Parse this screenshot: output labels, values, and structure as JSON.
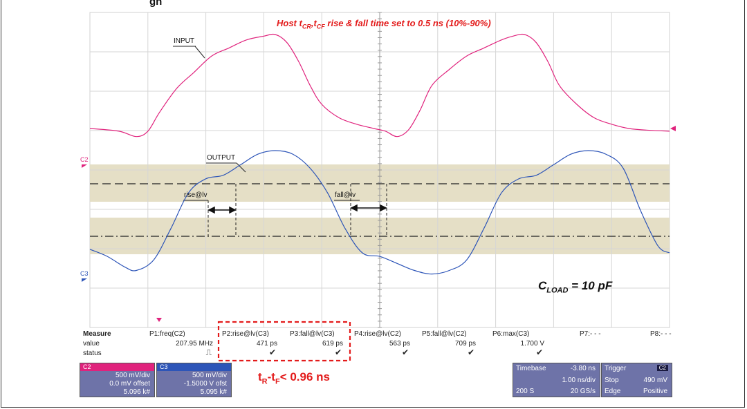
{
  "title_partial": "gn",
  "annotation_host": "Host t",
  "annotation_host_sub1": "CR",
  "annotation_mid": ",t",
  "annotation_host_sub2": "CF",
  "annotation_tail": " rise & fall time set to 0.5 ns (10%-90%)",
  "trace_labels": {
    "input": "INPUT",
    "output": "OUTPUT",
    "rise": "rise@lv",
    "fall": "fall@lv",
    "c2": "C2",
    "c3": "C3"
  },
  "cload_prefix": "C",
  "cload_sub": "LOAD",
  "cload_suffix": " = 10 pF",
  "trtf_prefix": "t",
  "trtf_sub1": "R",
  "trtf_mid": "-t",
  "trtf_sub2": "F",
  "trtf_suffix": "< 0.96 ns",
  "measure": {
    "row_labels": [
      "Measure",
      "value",
      "status"
    ],
    "params": [
      {
        "name": "P1:freq(C2)",
        "value": "207.95 MHz",
        "status": "⎍"
      },
      {
        "name": "P2:rise@lv(C3)",
        "value": "471 ps",
        "status": "✔"
      },
      {
        "name": "P3:fall@lv(C3)",
        "value": "619 ps",
        "status": "✔"
      },
      {
        "name": "P4:rise@lv(C2)",
        "value": "563 ps",
        "status": "✔"
      },
      {
        "name": "P5:fall@lv(C2)",
        "value": "709 ps",
        "status": "✔"
      },
      {
        "name": "P6:max(C3)",
        "value": "1.700 V",
        "status": "✔"
      },
      {
        "name": "P7:- - -",
        "value": "",
        "status": ""
      },
      {
        "name": "P8:- - -",
        "value": "",
        "status": ""
      }
    ]
  },
  "channels": [
    {
      "name": "C2",
      "color": "#e0237d",
      "vdiv": "500 mV/div",
      "offset": "0.0 mV offset",
      "points": "5.096 k#"
    },
    {
      "name": "C3",
      "color": "#2d55b8",
      "vdiv": "500 mV/div",
      "offset": "-1.5000 V ofst",
      "points": "5.095 k#"
    }
  ],
  "timebase": {
    "label": "Timebase",
    "delay": "-3.80 ns",
    "div": "1.00 ns/div",
    "samples": "200 S",
    "rate": "20 GS/s"
  },
  "trigger": {
    "label": "Trigger",
    "channel": "C2",
    "mode": "Stop",
    "level": "490 mV",
    "type": "Edge",
    "slope": "Positive"
  },
  "colors": {
    "input": "#e0237d",
    "output": "#2d55b8",
    "highlight": "#e31b1b",
    "band": "#e2dcc0",
    "panel": "#6e73a8"
  },
  "chart_data": {
    "type": "line",
    "title": "Host tCR,tCF rise & fall time set to 0.5 ns (10%-90%)",
    "x_unit": "ns",
    "x_range": [
      -8.8,
      1.2
    ],
    "grid": "on, 10 x 8 divisions",
    "series": [
      {
        "name": "INPUT",
        "channel": "C2",
        "x": [
          -8.8,
          -8.3,
          -8.0,
          -7.8,
          -7.6,
          -7.3,
          -7.0,
          -6.7,
          -6.4,
          -6.1,
          -5.8,
          -5.6,
          -5.4,
          -5.2,
          -5.0,
          -4.8,
          -4.5,
          -4.2,
          -3.9,
          -3.7,
          -3.5,
          -3.3,
          -3.1,
          -2.9,
          -2.6,
          -2.3,
          -2.0,
          -1.7,
          -1.5,
          -1.3,
          -1.1,
          -0.9,
          -0.7,
          -0.4,
          -0.1,
          0.2,
          0.5,
          0.8,
          1.2
        ],
        "y": [
          0.0,
          -0.05,
          -0.15,
          -0.05,
          0.3,
          0.75,
          1.05,
          1.35,
          1.5,
          1.65,
          1.72,
          1.75,
          1.6,
          1.25,
          0.8,
          0.45,
          0.2,
          0.08,
          0.0,
          -0.05,
          -0.15,
          -0.02,
          0.35,
          0.8,
          1.1,
          1.35,
          1.5,
          1.65,
          1.72,
          1.75,
          1.6,
          1.25,
          0.8,
          0.45,
          0.2,
          0.08,
          0.0,
          -0.03,
          -0.05
        ]
      },
      {
        "name": "OUTPUT",
        "channel": "C3",
        "x": [
          -8.8,
          -8.5,
          -8.2,
          -8.0,
          -7.7,
          -7.4,
          -7.1,
          -6.8,
          -6.5,
          -6.2,
          -5.9,
          -5.6,
          -5.3,
          -5.0,
          -4.7,
          -4.4,
          -4.1,
          -3.8,
          -3.5,
          -3.2,
          -2.9,
          -2.6,
          -2.3,
          -2.0,
          -1.7,
          -1.4,
          -1.1,
          -0.8,
          -0.5,
          -0.2,
          0.1,
          0.4,
          0.7,
          1.0,
          1.2
        ],
        "y": [
          0.05,
          -0.05,
          -0.2,
          -0.25,
          -0.1,
          0.35,
          0.85,
          1.05,
          1.1,
          1.25,
          1.4,
          1.45,
          1.4,
          1.2,
          0.85,
          0.35,
          0.0,
          -0.05,
          -0.15,
          -0.25,
          -0.3,
          -0.25,
          -0.1,
          0.35,
          0.85,
          1.05,
          1.1,
          1.25,
          1.4,
          1.45,
          1.4,
          1.2,
          0.6,
          0.1,
          0.0
        ]
      }
    ],
    "measurements": [
      {
        "param": "P1:freq(C2)",
        "value": "207.95 MHz"
      },
      {
        "param": "P2:rise@lv(C3)",
        "value": "471 ps"
      },
      {
        "param": "P3:fall@lv(C3)",
        "value": "619 ps"
      },
      {
        "param": "P4:rise@lv(C2)",
        "value": "563 ps"
      },
      {
        "param": "P5:fall@lv(C2)",
        "value": "709 ps"
      },
      {
        "param": "P6:max(C3)",
        "value": "1.700 V"
      }
    ]
  }
}
